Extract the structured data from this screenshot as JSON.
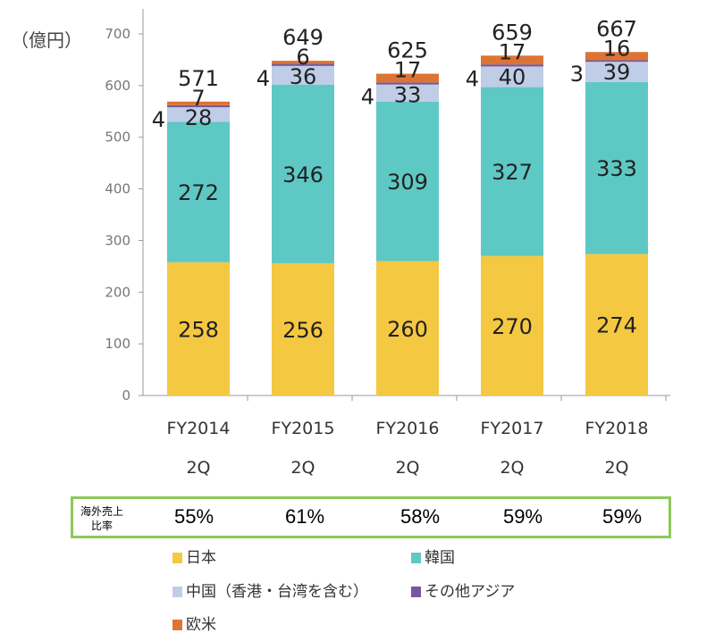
{
  "chart_data": {
    "type": "bar",
    "stacked": true,
    "unit_label": "（億円）",
    "categories": [
      "FY2014",
      "FY2015",
      "FY2016",
      "FY2017",
      "FY2018"
    ],
    "category_sublabels": [
      "2Q",
      "2Q",
      "2Q",
      "2Q",
      "2Q"
    ],
    "ylim": [
      0,
      700
    ],
    "yticks": [
      0,
      100,
      200,
      300,
      400,
      500,
      600,
      700
    ],
    "grid": false,
    "series": [
      {
        "name": "日本",
        "color": "#F5C842",
        "values": [
          258,
          256,
          260,
          270,
          274
        ]
      },
      {
        "name": "韓国",
        "color": "#5EC8C4",
        "values": [
          272,
          346,
          309,
          327,
          333
        ]
      },
      {
        "name": "中国（香港・台湾を含む）",
        "color": "#BFCDE6",
        "values": [
          28,
          36,
          33,
          40,
          39
        ]
      },
      {
        "name": "その他アジア",
        "color": "#76599C",
        "values": [
          4,
          4,
          4,
          4,
          3
        ]
      },
      {
        "name": "欧米",
        "color": "#DD7434",
        "values": [
          7,
          6,
          17,
          17,
          16
        ]
      }
    ],
    "totals": [
      571,
      649,
      625,
      659,
      667
    ],
    "legend_position": "bottom"
  },
  "ratio_row": {
    "label_line1": "海外売上",
    "label_line2": "比率",
    "values": [
      "55%",
      "61%",
      "58%",
      "59%",
      "59%"
    ],
    "border_color": "#8DC95A"
  }
}
